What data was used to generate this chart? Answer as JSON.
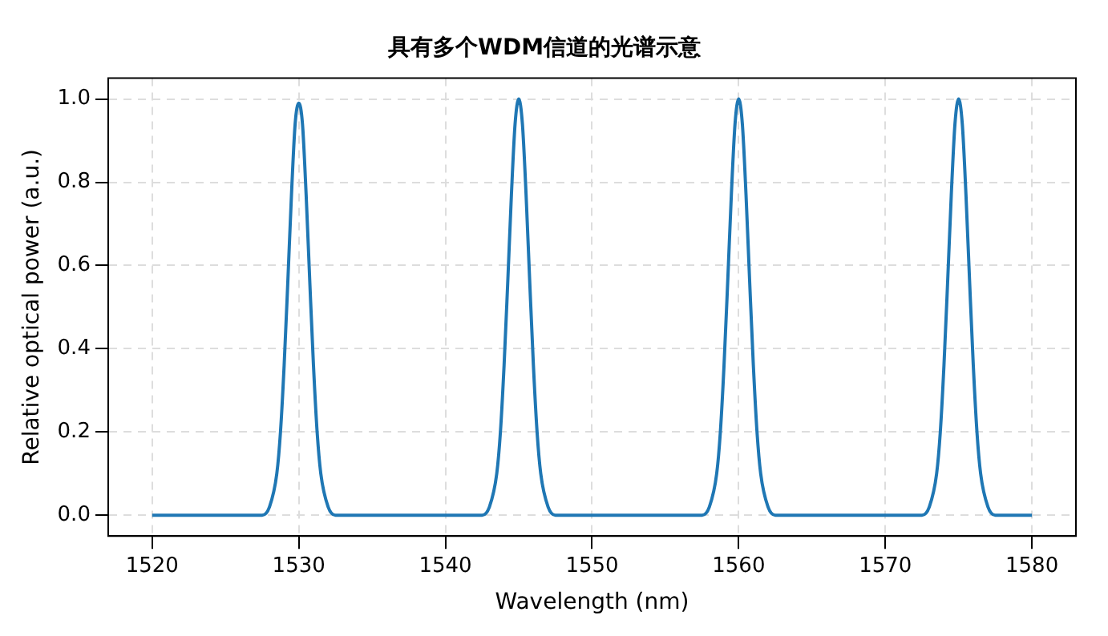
{
  "chart_data": {
    "type": "line",
    "title": "具有多个WDM信道的光谱示意",
    "xlabel": "Wavelength (nm)",
    "ylabel": "Relative optical power (a.u.)",
    "x": [
      1520,
      1527.5,
      1528,
      1528.5,
      1528.75,
      1529,
      1529.25,
      1529.5,
      1529.75,
      1530,
      1530.25,
      1530.5,
      1530.75,
      1531,
      1531.25,
      1531.5,
      1532,
      1532.5,
      1542.5,
      1543,
      1543.5,
      1543.75,
      1544,
      1544.25,
      1544.5,
      1544.75,
      1545,
      1545.25,
      1545.5,
      1545.75,
      1546,
      1546.25,
      1546.5,
      1547,
      1547.5,
      1557.5,
      1558,
      1558.5,
      1558.75,
      1559,
      1559.25,
      1559.5,
      1559.75,
      1560,
      1560.25,
      1560.5,
      1560.75,
      1561,
      1561.25,
      1561.5,
      1562,
      1562.5,
      1572.5,
      1573,
      1573.5,
      1573.75,
      1574,
      1574.25,
      1574.5,
      1574.75,
      1575,
      1575.25,
      1575.5,
      1575.75,
      1576,
      1576.25,
      1576.5,
      1577,
      1577.5,
      1580
    ],
    "series": [
      {
        "color": "#1f77b4",
        "values": [
          0,
          0,
          0.02,
          0.1,
          0.2,
          0.36,
          0.56,
          0.77,
          0.94,
          0.99,
          0.94,
          0.77,
          0.56,
          0.36,
          0.2,
          0.1,
          0.02,
          0,
          0,
          0.02,
          0.1,
          0.2,
          0.36,
          0.56,
          0.77,
          0.94,
          1.0,
          0.94,
          0.77,
          0.56,
          0.36,
          0.2,
          0.1,
          0.02,
          0,
          0,
          0.02,
          0.1,
          0.2,
          0.36,
          0.56,
          0.77,
          0.94,
          1.0,
          0.94,
          0.77,
          0.56,
          0.36,
          0.2,
          0.1,
          0.02,
          0,
          0,
          0.02,
          0.1,
          0.2,
          0.36,
          0.56,
          0.77,
          0.94,
          1.0,
          0.94,
          0.77,
          0.56,
          0.36,
          0.2,
          0.1,
          0.02,
          0,
          0
        ]
      }
    ],
    "xlim": [
      1517,
      1583
    ],
    "xticks": [
      1520,
      1530,
      1540,
      1550,
      1560,
      1570,
      1580
    ],
    "ylim": [
      -0.05,
      1.05
    ],
    "yticks": [
      {
        "value": 0,
        "label": "0.0"
      },
      0.2,
      0.4,
      0.6,
      0.8,
      {
        "value": 1,
        "label": "1.0"
      }
    ],
    "grid": true,
    "marker": "none",
    "line_style": "solid",
    "legend": false
  }
}
